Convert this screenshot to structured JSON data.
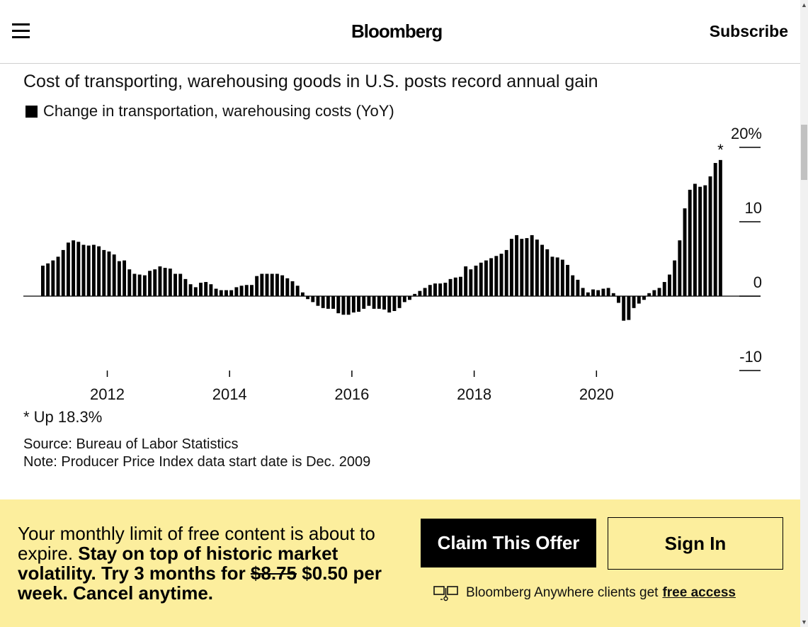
{
  "header": {
    "brand": "Bloomberg",
    "subscribe_label": "Subscribe"
  },
  "chart": {
    "title": "Cost of transporting, warehousing goods in U.S. posts record annual gain",
    "legend_label": "Change in transportation, warehousing costs (YoY)",
    "footnote": "* Up 18.3%",
    "source": "Source: Bureau of Labor Statistics",
    "note": "Note: Producer Price Index data start date is Dec. 2009"
  },
  "chart_data": {
    "type": "bar",
    "title": "Cost of transporting, warehousing goods in U.S. posts record annual gain",
    "series": [
      {
        "name": "Change in transportation, warehousing costs (YoY)",
        "start": "2010-12",
        "frequency": "monthly",
        "values": [
          4.1,
          4.4,
          4.8,
          5.3,
          6.2,
          7.2,
          7.5,
          7.3,
          6.9,
          6.8,
          6.9,
          6.7,
          6.2,
          6.0,
          5.6,
          4.7,
          4.8,
          3.6,
          3.0,
          2.9,
          2.8,
          3.4,
          3.6,
          4.0,
          3.8,
          3.7,
          3.0,
          3.0,
          2.3,
          1.6,
          1.2,
          1.8,
          1.9,
          1.6,
          1.0,
          0.8,
          0.8,
          0.8,
          1.2,
          1.4,
          1.5,
          1.5,
          2.7,
          3.0,
          3.0,
          3.0,
          3.0,
          2.8,
          2.4,
          2.0,
          1.4,
          0.5,
          -0.4,
          -0.8,
          -1.3,
          -1.6,
          -1.7,
          -1.7,
          -2.3,
          -2.5,
          -2.5,
          -2.2,
          -2.1,
          -1.7,
          -1.3,
          -1.7,
          -1.7,
          -1.8,
          -2.2,
          -2.0,
          -1.6,
          -0.8,
          -0.5,
          0.3,
          0.7,
          1.1,
          1.5,
          1.7,
          1.7,
          1.8,
          2.3,
          2.5,
          2.6,
          4.0,
          3.6,
          4.1,
          4.5,
          4.8,
          5.1,
          5.4,
          5.7,
          6.2,
          7.7,
          8.2,
          7.7,
          7.8,
          8.2,
          7.6,
          6.9,
          6.3,
          5.3,
          5.2,
          4.9,
          4.2,
          2.8,
          2.2,
          1.1,
          0.5,
          0.9,
          0.8,
          1.0,
          1.1,
          0.4,
          -0.9,
          -3.3,
          -3.2,
          -1.6,
          -1.0,
          -0.5,
          0.4,
          0.8,
          1.1,
          1.9,
          2.9,
          4.8,
          7.5,
          11.8,
          14.3,
          15.1,
          14.7,
          14.9,
          16.1,
          17.9,
          18.3
        ]
      }
    ],
    "x_tick_labels": [
      "2012",
      "2014",
      "2016",
      "2018",
      "2020"
    ],
    "y_tick_labels": [
      "20%",
      "10",
      "0",
      "-10"
    ],
    "ylim": [
      -10,
      20
    ],
    "y_ticks": [
      20,
      10,
      0,
      -10
    ],
    "y_axis_side": "right",
    "grid": false,
    "annotations": [
      {
        "text": "*",
        "target": "last bar"
      }
    ],
    "legend_position": "top-left"
  },
  "paywall": {
    "intro": "Your monthly limit of free content is about to expire.",
    "pitch": "Stay on top of historic market volatility. Try 3 months for",
    "old_price": "$8.75",
    "new_price": "$0.50 per week. Cancel anytime.",
    "claim_label": "Claim This Offer",
    "signin_label": "Sign In",
    "ba_text": "Bloomberg Anywhere clients get",
    "ba_link": "free access"
  },
  "colors": {
    "bar": "#000000",
    "paywall_bg": "#fcee9d",
    "button_bg": "#000000"
  },
  "icons": {
    "menu": "hamburger-icon",
    "terminal": "bloomberg-terminal-icon"
  }
}
